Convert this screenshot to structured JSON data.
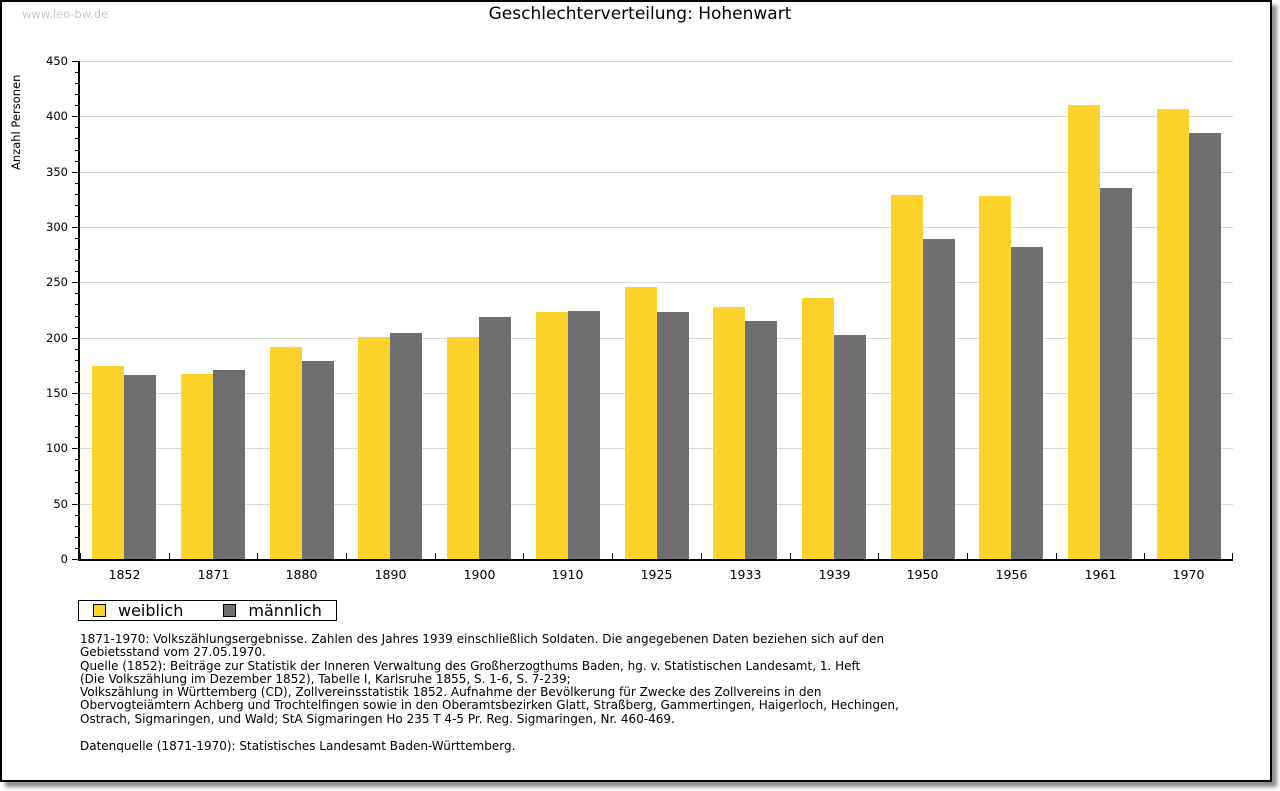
{
  "watermark": "www.leo-bw.de",
  "title": "Geschlechterverteilung: Hohenwart",
  "chart_data": {
    "type": "bar",
    "title": "Geschlechterverteilung: Hohenwart",
    "categories": [
      "1852",
      "1871",
      "1880",
      "1890",
      "1900",
      "1910",
      "1925",
      "1933",
      "1939",
      "1950",
      "1956",
      "1961",
      "1970"
    ],
    "series": [
      {
        "name": "weiblich",
        "color": "#fcd22b",
        "values": [
          174,
          167,
          192,
          201,
          201,
          223,
          246,
          228,
          236,
          329,
          328,
          410,
          407
        ]
      },
      {
        "name": "männlich",
        "color": "#6f6f6f",
        "values": [
          166,
          171,
          179,
          204,
          219,
          224,
          223,
          215,
          202,
          289,
          282,
          335,
          385
        ]
      }
    ],
    "xlabel": "",
    "ylabel": "Anzahl Personen",
    "ylim": [
      0,
      450
    ],
    "ytick_step": 50,
    "minor_tick_step": 10,
    "grid": true,
    "gridline_color": "#d9d9d9",
    "legend_position": "bottom-left"
  },
  "legend": {
    "items": [
      {
        "label": "weiblich",
        "color": "#fcd22b"
      },
      {
        "label": "männlich",
        "color": "#6f6f6f"
      }
    ]
  },
  "footnotes": {
    "lines": [
      "1871-1970: Volkszählungsergebnisse. Zahlen des Jahres 1939 einschließlich Soldaten. Die angegebenen Daten beziehen sich auf den",
      "Gebietsstand vom 27.05.1970.",
      "Quelle (1852): Beiträge zur Statistik der Inneren Verwaltung des Großherzogthums Baden, hg. v. Statistischen Landesamt, 1. Heft",
      "(Die Volkszählung im Dezember 1852), Tabelle I, Karlsruhe 1855, S. 1-6, S. 7-239;",
      "Volkszählung in Württemberg (CD), Zollvereinsstatistik 1852. Aufnahme der Bevölkerung für Zwecke des Zollvereins in den",
      "Obervogteiämtern Achberg und Trochtelfingen sowie in den Oberamtsbezirken Glatt, Straßberg, Gammertingen, Haigerloch, Hechingen,",
      "Ostrach, Sigmaringen, und Wald; StA Sigmaringen Ho 235 T 4-5 Pr. Reg. Sigmaringen, Nr. 460-469."
    ],
    "datasource": "Datenquelle (1871-1970): Statistisches Landesamt Baden-Württemberg."
  }
}
